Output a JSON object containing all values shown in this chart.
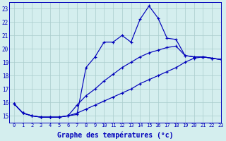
{
  "xlabel": "Graphe des températures (°c)",
  "background_color": "#d4eeee",
  "line_color": "#0000bb",
  "grid_color": "#aacccc",
  "xlim": [
    -0.5,
    23
  ],
  "ylim": [
    14.5,
    23.5
  ],
  "xticks": [
    0,
    1,
    2,
    3,
    4,
    5,
    6,
    7,
    8,
    9,
    10,
    11,
    12,
    13,
    14,
    15,
    16,
    17,
    18,
    19,
    20,
    21,
    22,
    23
  ],
  "yticks": [
    15,
    16,
    17,
    18,
    19,
    20,
    21,
    22,
    23
  ],
  "hours": [
    0,
    1,
    2,
    3,
    4,
    5,
    6,
    7,
    8,
    9,
    10,
    11,
    12,
    13,
    14,
    15,
    16,
    17,
    18,
    19,
    20,
    21,
    22,
    23
  ],
  "line1_hours": [
    0,
    1,
    2,
    3,
    4,
    5,
    6,
    7,
    8,
    9,
    10,
    11,
    12,
    13,
    14,
    15,
    16,
    17,
    18,
    19,
    20,
    21,
    22,
    23
  ],
  "line1": [
    15.9,
    15.2,
    15.0,
    14.9,
    14.9,
    14.9,
    15.0,
    15.1,
    18.6,
    19.4,
    20.5,
    20.5,
    21.0,
    20.5,
    22.2,
    23.2,
    22.3,
    20.8,
    20.7,
    19.5,
    19.4,
    19.4,
    19.3,
    19.2
  ],
  "line2_hours": [
    0,
    1,
    2,
    3,
    4,
    5,
    6,
    7,
    8,
    9,
    10,
    11,
    12,
    13,
    14,
    15,
    16,
    17,
    18,
    19,
    20,
    21,
    22,
    23
  ],
  "line2": [
    15.9,
    15.2,
    15.0,
    14.9,
    14.9,
    14.9,
    15.0,
    15.8,
    16.5,
    17.0,
    17.6,
    18.1,
    18.6,
    19.0,
    19.4,
    19.7,
    19.9,
    20.1,
    20.2,
    19.5,
    19.4,
    19.4,
    19.3,
    19.2
  ],
  "line3_hours": [
    0,
    1,
    2,
    3,
    4,
    5,
    6,
    7,
    8,
    9,
    10,
    11,
    12,
    13,
    14,
    15,
    16,
    17,
    18,
    19,
    20,
    21,
    22,
    23
  ],
  "line3": [
    15.9,
    15.2,
    15.0,
    14.9,
    14.9,
    14.9,
    15.0,
    15.2,
    15.5,
    15.8,
    16.1,
    16.4,
    16.7,
    17.0,
    17.4,
    17.7,
    18.0,
    18.3,
    18.6,
    19.0,
    19.3,
    19.4,
    19.3,
    19.2
  ]
}
